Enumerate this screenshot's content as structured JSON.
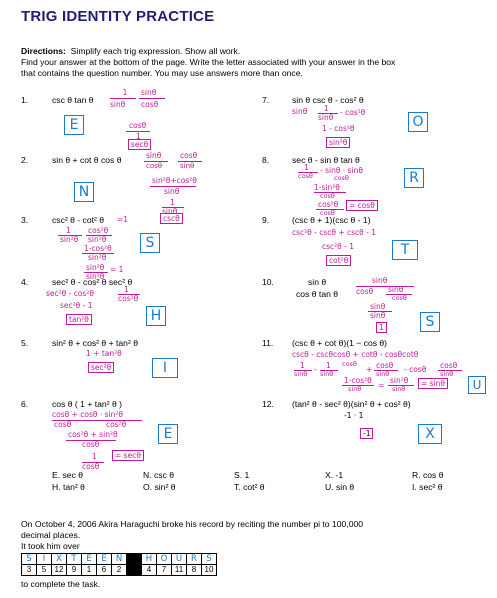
{
  "title": "TRIG IDENTITY PRACTICE",
  "directions": {
    "label": "Directions:",
    "line1": "Simplify each trig expression.  Show all work.",
    "line2": "Find your answer at the bottom of the page.  Write the letter associated with your answer in the box",
    "line3": "that contains the question number.  You may use answers more than once."
  },
  "problems": [
    {
      "num": "1.",
      "expr": "csc θ tan θ",
      "box": "E"
    },
    {
      "num": "2.",
      "expr": "sin θ + cot θ cos θ",
      "box": "N"
    },
    {
      "num": "3.",
      "expr": "csc² θ - cot² θ",
      "box": "S"
    },
    {
      "num": "4.",
      "expr": "sec² θ - cos² θ sec² θ",
      "box": "H"
    },
    {
      "num": "5.",
      "expr": "sin² θ + cos² θ + tan² θ",
      "box": "I"
    },
    {
      "num": "6.",
      "expr": "cos θ ( 1 + tan² θ )",
      "box": "E"
    },
    {
      "num": "7.",
      "expr": "sin θ csc θ - cos² θ",
      "box": "O"
    },
    {
      "num": "8.",
      "expr": "sec θ - sin θ tan θ",
      "box": "R"
    },
    {
      "num": "9.",
      "expr": "(csc θ + 1)(csc θ - 1)",
      "box": "T"
    },
    {
      "num": "10.",
      "expr_top": "sin θ",
      "expr_bot": "cos θ tan θ",
      "box": "S"
    },
    {
      "num": "11.",
      "expr": "(csc θ + cot θ)(1 − cos θ)",
      "box": "U"
    },
    {
      "num": "12.",
      "expr": "(tan² θ - sec² θ)(sin² θ + cos² θ)",
      "box": "X"
    }
  ],
  "work": {
    "p1": [
      "1",
      "sinθ",
      "sinθ",
      "cosθ",
      "cosθ",
      "1",
      "secθ"
    ],
    "p2": [
      "sinθ",
      "cosθ",
      "cosθ",
      "sinθ",
      "sin²θ+cos²θ",
      "sinθ",
      "1",
      "sinθ",
      "cscθ"
    ],
    "p3": [
      "=1",
      "1",
      "cos²θ",
      "sin²θ",
      "sin²θ",
      "1-cos²θ",
      "sin²θ",
      "sin²θ",
      "sin²θ",
      "= 1"
    ],
    "p4": [
      "sec²θ - cos²θ",
      "1",
      "cos²θ",
      "sec²θ - 1",
      "tan²θ"
    ],
    "p5": [
      "1 + tan²θ",
      "sec²θ"
    ],
    "p6": [
      "cosθ + cosθ · sin²θ",
      "cos²θ",
      "cosθ",
      "cos²θ + sin²θ",
      "cosθ",
      "1",
      "cosθ",
      "= secθ"
    ],
    "p7": [
      "sinθ",
      "1",
      "sinθ",
      "- cos²θ",
      "1 - cos²θ",
      "sin²θ"
    ],
    "p8": [
      "1",
      "cosθ",
      "- sinθ · sinθ",
      "cosθ",
      "1-sin²θ",
      "cosθ",
      "cos²θ",
      "cosθ",
      "= cosθ"
    ],
    "p9": [
      "csc²θ - cscθ + cscθ - 1",
      "csc²θ - 1",
      "cot²θ"
    ],
    "p10": [
      "sinθ",
      "cosθ",
      "sinθ",
      "cosθ",
      "sinθ",
      "sinθ",
      "1"
    ],
    "p11": [
      "cscθ - cscθcosθ + cotθ - cosθcotθ",
      "1",
      "sinθ",
      "-",
      "1",
      "sinθ",
      "cosθ",
      "+",
      "cosθ",
      "sinθ",
      "- cosθ",
      "cosθ",
      "sinθ",
      "1-cos²θ",
      "sinθ",
      "=",
      "sin²θ",
      "sinθ",
      "= sinθ"
    ],
    "p12": [
      "-1 · 1",
      "-1"
    ]
  },
  "answers": [
    [
      "E. sec θ",
      "N. csc θ",
      "S. 1",
      "X. -1",
      "R. cos θ"
    ],
    [
      "H. tan² θ",
      "O. sin² θ",
      "T. cot² θ",
      "U. sin θ",
      "I. sec² θ"
    ]
  ],
  "closing": {
    "line1": "On October 4, 2006 Akira Haraguchi broke his record by reciting the number pi to 100,000",
    "line2": "decimal places.",
    "line3": "It took him over",
    "letters": [
      "S",
      "I",
      "X",
      "T",
      "E",
      "E",
      "N",
      "",
      "H",
      "O",
      "U",
      "R",
      "S"
    ],
    "numbers": [
      "3",
      "5",
      "12",
      "9",
      "1",
      "6",
      "2",
      "",
      "4",
      "7",
      "11",
      "8",
      "10"
    ],
    "line4": "to complete the task."
  }
}
